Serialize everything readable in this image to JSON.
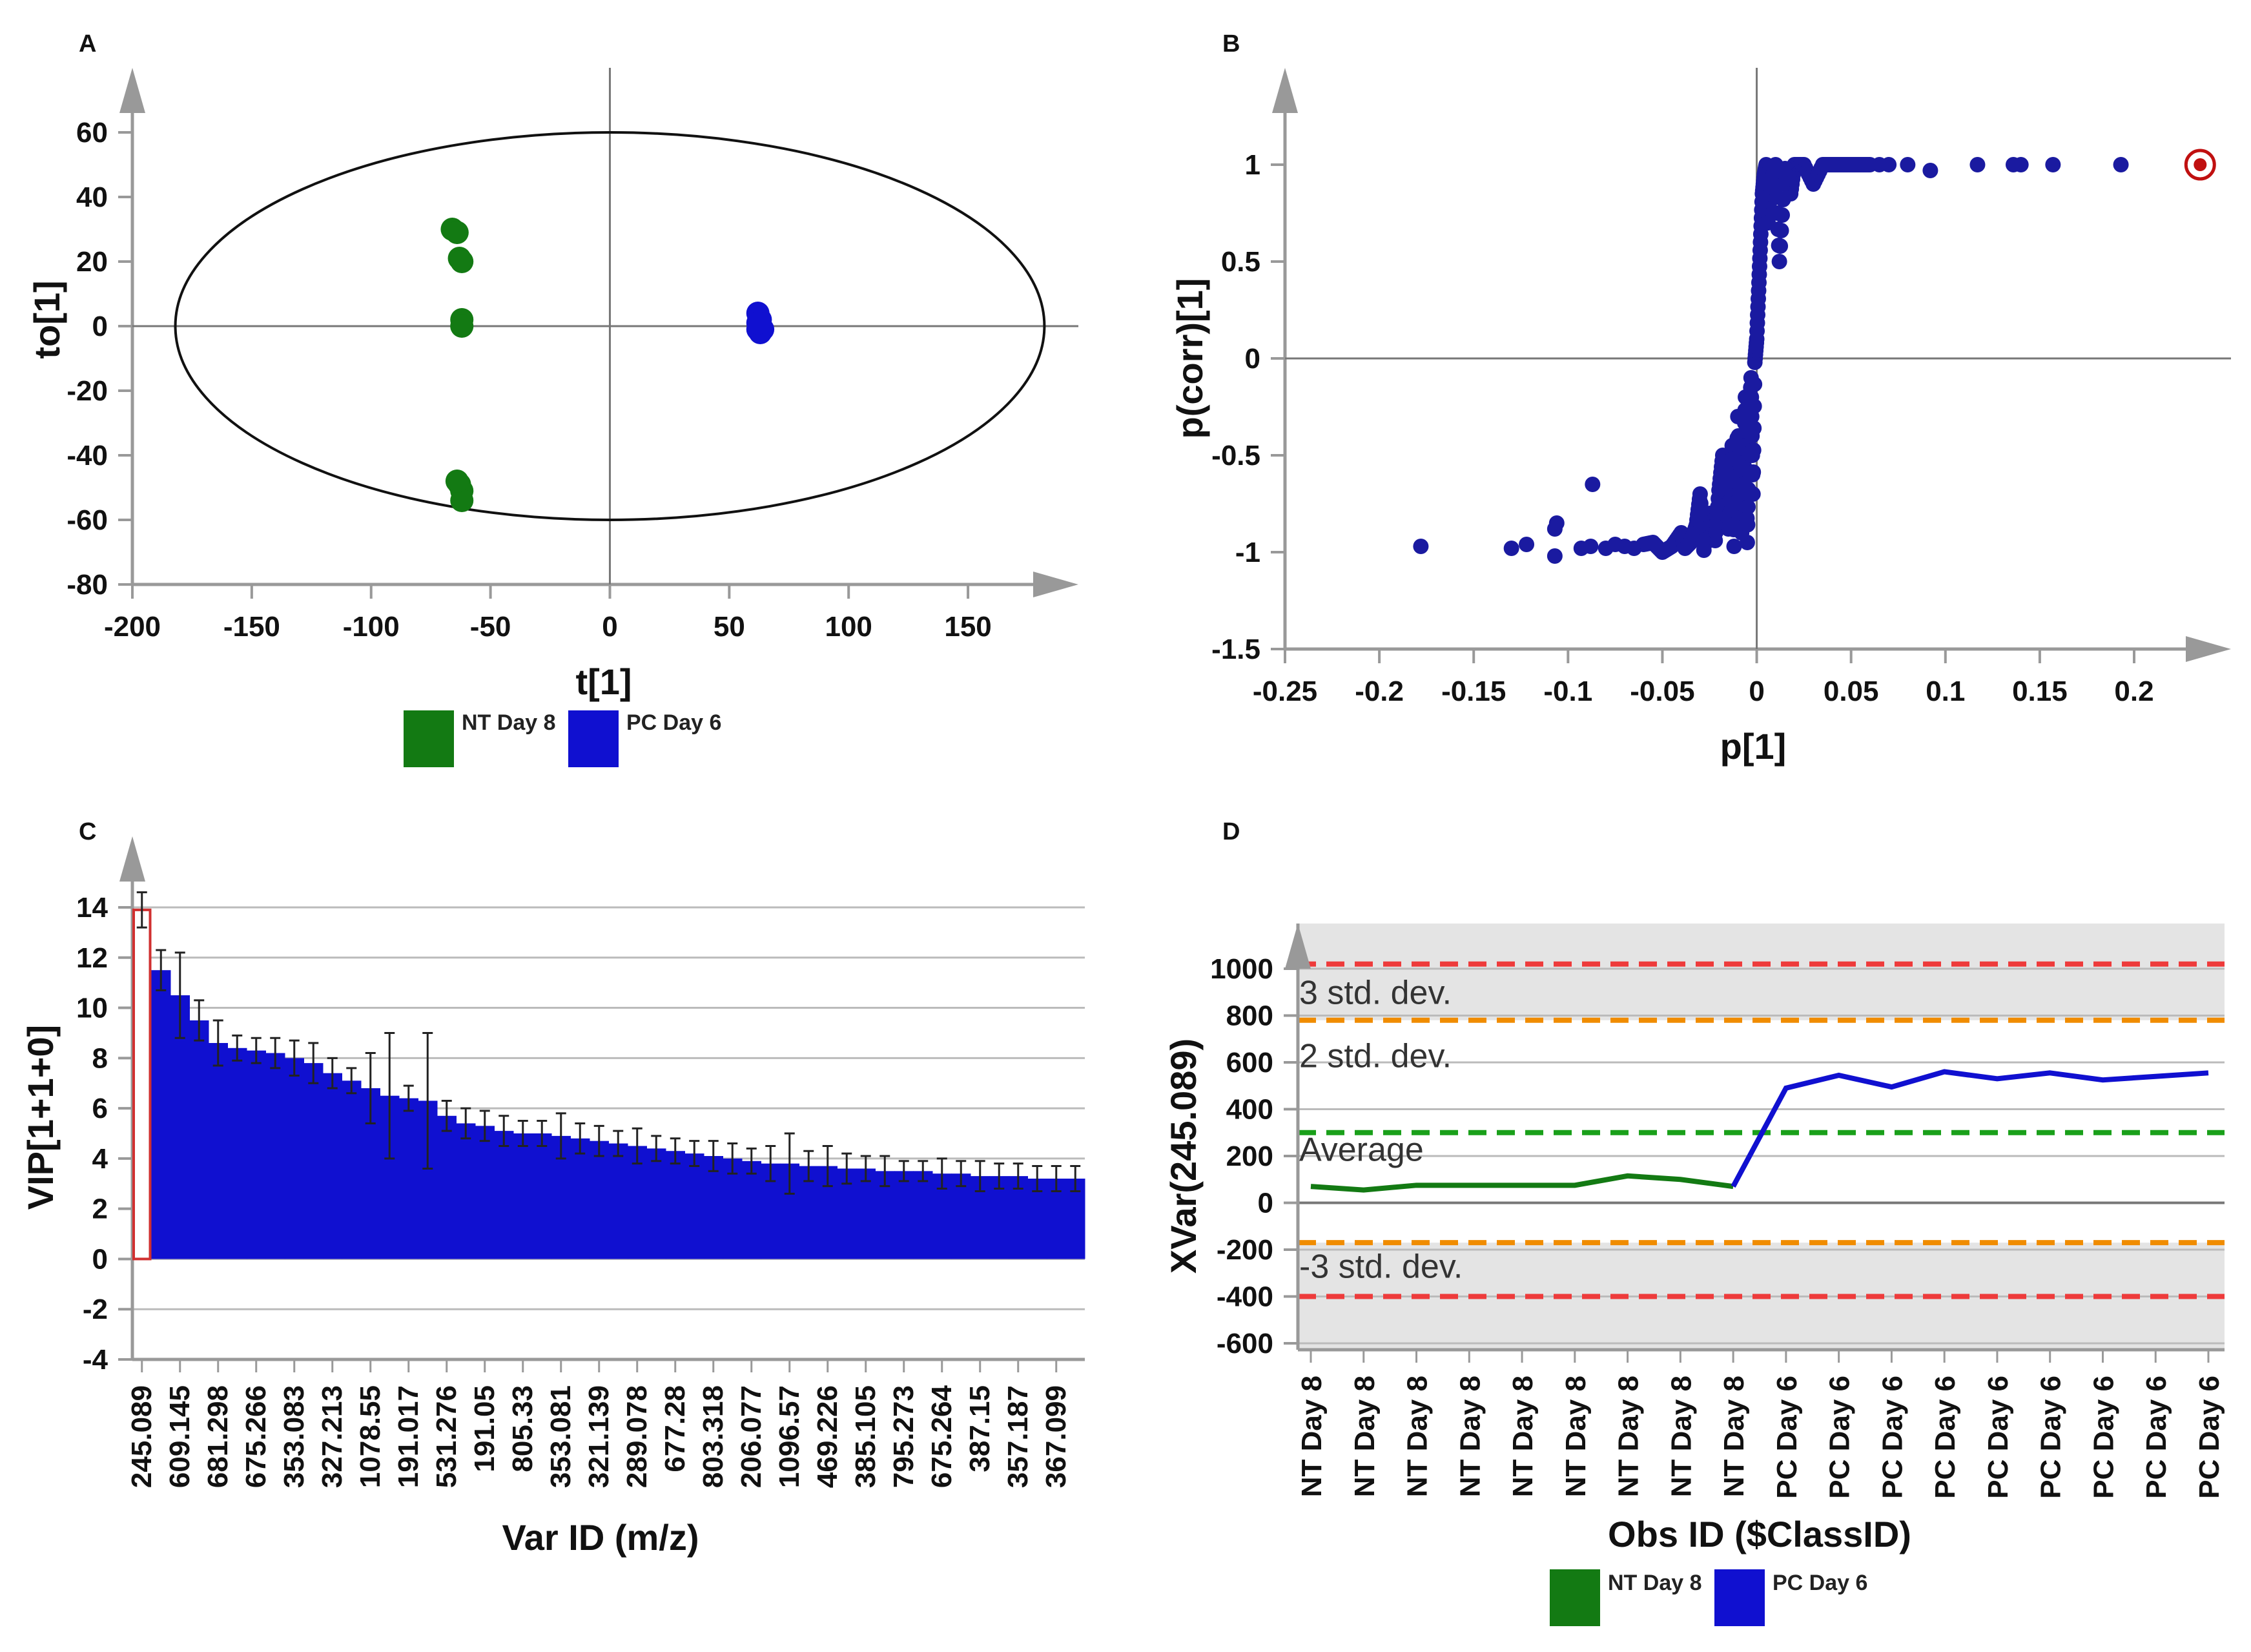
{
  "chart_data": [
    {
      "panel": "A",
      "type": "scatter",
      "xlabel": "t[1]",
      "ylabel": "to[1]",
      "xlim": [
        -200,
        185
      ],
      "ylim": [
        -80,
        65
      ],
      "xticks": [
        -200,
        -150,
        -100,
        -50,
        0,
        50,
        100,
        150
      ],
      "yticks": [
        60,
        40,
        20,
        0,
        -20,
        -40,
        -60,
        -80
      ],
      "ellipse": {
        "center": [
          0,
          0
        ],
        "rx": 182,
        "ry": 60
      },
      "series": [
        {
          "name": "NT Day 8",
          "color": "#137a13",
          "points": [
            [
              -66,
              30
            ],
            [
              -64,
              29
            ],
            [
              -63,
              21
            ],
            [
              -62,
              20
            ],
            [
              -62,
              2
            ],
            [
              -62,
              0
            ],
            [
              -63,
              -49
            ],
            [
              -62,
              -51
            ],
            [
              -62,
              -54
            ],
            [
              -64,
              -48
            ]
          ]
        },
        {
          "name": "PC Day 6",
          "color": "#1010d0",
          "points": [
            [
              62,
              4
            ],
            [
              63,
              2
            ],
            [
              63,
              0
            ],
            [
              62,
              -1
            ],
            [
              63,
              -2
            ],
            [
              64,
              -1
            ],
            [
              62,
              1
            ]
          ]
        }
      ],
      "legend": [
        "NT Day 8",
        "PC Day 6"
      ],
      "legend_position": "bottom"
    },
    {
      "panel": "B",
      "type": "scatter",
      "xlabel": "p[1]",
      "ylabel": "p(corr)[1]",
      "xlim": [
        -0.25,
        0.24
      ],
      "ylim": [
        -1.5,
        1.3
      ],
      "xticks": [
        -0.25,
        -0.2,
        -0.15,
        -0.1,
        -0.05,
        0,
        0.05,
        0.1,
        0.15,
        0.2
      ],
      "xtick_labels": [
        "-0.25",
        "-0.2",
        "-0.15",
        "-0.1",
        "-0.05",
        "0",
        "0.05",
        "0.1",
        "0.15",
        "0.2"
      ],
      "yticks": [
        1,
        0.5,
        0,
        -0.5,
        -1,
        -1.5
      ],
      "ytick_labels": [
        "1",
        "0.5",
        "0",
        "-0.5",
        "-1",
        "-1.5"
      ],
      "series": [
        {
          "name": "variables",
          "color": "#1a1aa0",
          "points": [
            [
              -0.178,
              -0.97
            ],
            [
              -0.13,
              -0.98
            ],
            [
              -0.122,
              -0.96
            ],
            [
              -0.107,
              -1.02
            ],
            [
              -0.107,
              -0.88
            ],
            [
              -0.106,
              -0.85
            ],
            [
              -0.093,
              -0.98
            ],
            [
              -0.088,
              -0.97
            ],
            [
              -0.087,
              -0.65
            ],
            [
              -0.08,
              -0.98
            ],
            [
              -0.075,
              -0.96
            ],
            [
              -0.07,
              -0.97
            ],
            [
              -0.065,
              -0.98
            ],
            [
              -0.06,
              -0.96
            ],
            [
              -0.055,
              -0.95
            ],
            [
              -0.05,
              -1.0
            ],
            [
              -0.045,
              -0.97
            ],
            [
              -0.04,
              -0.9
            ],
            [
              -0.038,
              -0.98
            ],
            [
              -0.035,
              -0.95
            ],
            [
              -0.032,
              -0.86
            ],
            [
              -0.03,
              -0.7
            ],
            [
              -0.028,
              -0.99
            ],
            [
              -0.025,
              -0.8
            ],
            [
              -0.022,
              -0.94
            ],
            [
              -0.02,
              -0.68
            ],
            [
              -0.018,
              -0.5
            ],
            [
              -0.015,
              -0.88
            ],
            [
              -0.013,
              -0.45
            ],
            [
              -0.012,
              -0.97
            ],
            [
              -0.01,
              -0.3
            ],
            [
              -0.008,
              -0.9
            ],
            [
              -0.007,
              -0.6
            ],
            [
              -0.006,
              -0.2
            ],
            [
              -0.005,
              -0.95
            ],
            [
              -0.004,
              -0.4
            ],
            [
              -0.003,
              -0.1
            ],
            [
              -0.002,
              -0.7
            ],
            [
              -0.001,
              -0.02
            ],
            [
              0,
              0.1
            ],
            [
              0.001,
              0.35
            ],
            [
              0.002,
              0.6
            ],
            [
              0.003,
              0.85
            ],
            [
              0.004,
              0.95
            ],
            [
              0.005,
              1.0
            ],
            [
              0.006,
              0.7
            ],
            [
              0.008,
              0.92
            ],
            [
              0.01,
              1.0
            ],
            [
              0.012,
              0.5
            ],
            [
              0.015,
              0.98
            ],
            [
              0.018,
              0.85
            ],
            [
              0.02,
              1.0
            ],
            [
              0.025,
              1.0
            ],
            [
              0.03,
              0.9
            ],
            [
              0.035,
              1.0
            ],
            [
              0.04,
              1.0
            ],
            [
              0.045,
              1.0
            ],
            [
              0.05,
              1.0
            ],
            [
              0.055,
              1.0
            ],
            [
              0.06,
              1.0
            ],
            [
              0.065,
              1.0
            ],
            [
              0.07,
              1.0
            ],
            [
              0.08,
              1.0
            ],
            [
              0.092,
              0.97
            ],
            [
              0.117,
              1.0
            ],
            [
              0.136,
              1.0
            ],
            [
              0.14,
              1.0
            ],
            [
              0.157,
              1.0
            ],
            [
              0.193,
              1.0
            ]
          ]
        },
        {
          "name": "selected",
          "color": "#c01010",
          "points": [
            [
              0.235,
              1.0
            ]
          ]
        }
      ]
    },
    {
      "panel": "C",
      "type": "bar",
      "xlabel": "Var ID (m/z)",
      "ylabel": "VIP[1+1+0]",
      "ylim": [
        -4,
        14.5
      ],
      "yticks": [
        14,
        12,
        10,
        8,
        6,
        4,
        2,
        0,
        -2,
        -4
      ],
      "categories": [
        "245.089",
        "609.145",
        "681.298",
        "675.266",
        "353.083",
        "327.213",
        "1078.55",
        "191.017",
        "531.276",
        "191.05",
        "805.33",
        "353.081",
        "321.139",
        "289.078",
        "677.28",
        "803.318",
        "206.077",
        "1096.57",
        "469.226",
        "385.105",
        "795.273",
        "675.264",
        "387.15",
        "357.187",
        "367.099"
      ],
      "bar_values": [
        13.9,
        11.5,
        10.5,
        9.5,
        8.6,
        8.4,
        8.3,
        8.2,
        8.0,
        7.8,
        7.4,
        7.1,
        6.8,
        6.5,
        6.4,
        6.3,
        5.7,
        5.4,
        5.3,
        5.1,
        5.0,
        5.0,
        4.9,
        4.8,
        4.7,
        4.6,
        4.5,
        4.4,
        4.3,
        4.2,
        4.1,
        4.0,
        3.9,
        3.8,
        3.8,
        3.7,
        3.7,
        3.6,
        3.6,
        3.5,
        3.5,
        3.5,
        3.4,
        3.4,
        3.3,
        3.3,
        3.3,
        3.2,
        3.2,
        3.2
      ],
      "bar_errors": [
        0.7,
        0.8,
        1.7,
        0.8,
        0.9,
        0.5,
        0.5,
        0.6,
        0.7,
        0.8,
        0.6,
        0.5,
        1.4,
        2.5,
        0.5,
        2.7,
        0.6,
        0.6,
        0.6,
        0.6,
        0.5,
        0.5,
        0.9,
        0.6,
        0.6,
        0.5,
        0.7,
        0.5,
        0.5,
        0.5,
        0.6,
        0.6,
        0.5,
        0.7,
        1.2,
        0.6,
        0.8,
        0.6,
        0.5,
        0.6,
        0.4,
        0.4,
        0.6,
        0.5,
        0.6,
        0.5,
        0.5,
        0.5,
        0.5,
        0.5
      ],
      "highlight_index": 0,
      "color": "#1010d0"
    },
    {
      "panel": "D",
      "type": "line",
      "xlabel": "Obs ID ($ClassID)",
      "ylabel": "XVar(245.089)",
      "ylim": [
        -600,
        1100
      ],
      "yticks": [
        1000,
        800,
        600,
        400,
        200,
        0,
        -200,
        -400,
        -600
      ],
      "categories": [
        "NT Day 8",
        "NT Day 8",
        "NT Day 8",
        "NT Day 8",
        "NT Day 8",
        "NT Day 8",
        "NT Day 8",
        "NT Day 8",
        "NT Day 8",
        "PC Day 6",
        "PC Day 6",
        "PC Day 6",
        "PC Day 6",
        "PC Day 6",
        "PC Day 6",
        "PC Day 6",
        "PC Day 6",
        "PC Day 6"
      ],
      "values": [
        70,
        55,
        75,
        75,
        75,
        75,
        115,
        100,
        70,
        490,
        545,
        495,
        560,
        530,
        555,
        525,
        540,
        555
      ],
      "series_colors": [
        "#137a13",
        "#1010d0"
      ],
      "reference_lines": [
        {
          "value": 1020,
          "color": "#ee3b3b",
          "label": ""
        },
        {
          "value": 780,
          "color": "#f08c00",
          "label": ""
        },
        {
          "value": 300,
          "color": "#1aa01a",
          "label": ""
        },
        {
          "value": -170,
          "color": "#f08c00",
          "label": ""
        },
        {
          "value": -400,
          "color": "#ee3b3b",
          "label": ""
        }
      ],
      "annotations": [
        "3 std. dev.",
        "2 std. dev.",
        "Average",
        "-3 std. dev."
      ],
      "legend": [
        "NT Day 8",
        "PC Day 6"
      ],
      "legend_position": "bottom"
    }
  ],
  "panel_labels": [
    "A",
    "B",
    "C",
    "D"
  ],
  "legend_A": {
    "items": [
      {
        "label": "NT Day 8",
        "color": "#137a13"
      },
      {
        "label": "PC Day 6",
        "color": "#1010d0"
      }
    ]
  },
  "legend_D": {
    "items": [
      {
        "label": "NT Day 8",
        "color": "#137a13"
      },
      {
        "label": "PC Day 6",
        "color": "#1010d0"
      }
    ]
  }
}
